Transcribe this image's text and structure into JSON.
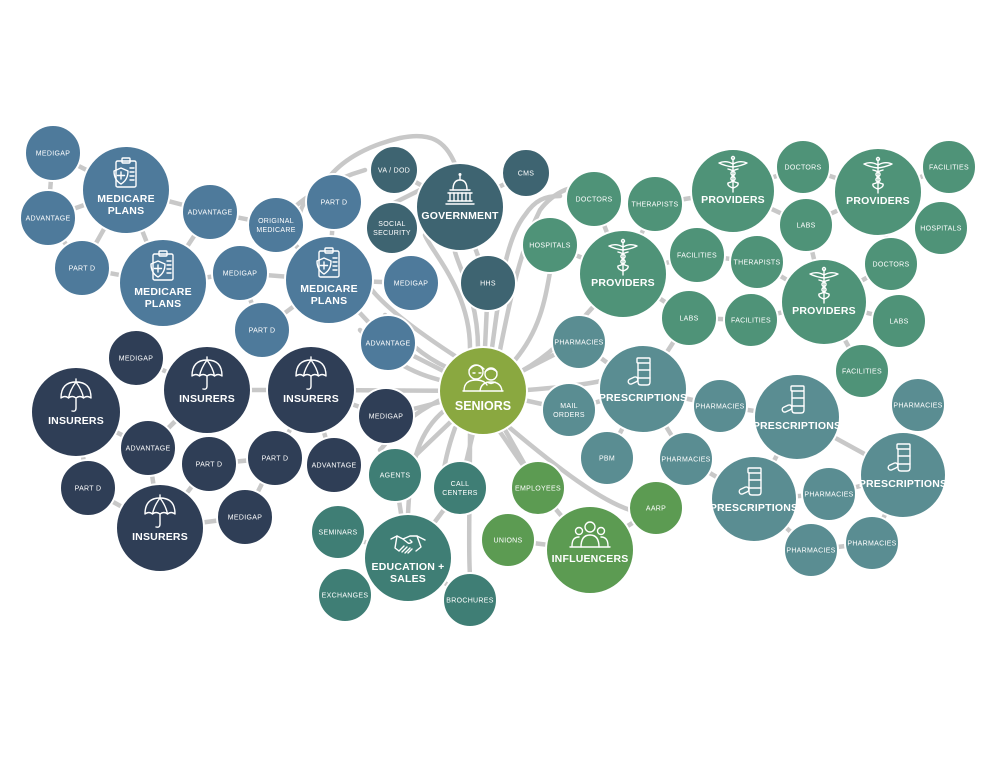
{
  "colors": {
    "medicare": "#4e7a9b",
    "government": "#3e6471",
    "insurers": "#2f3e56",
    "seniors": "#8aa840",
    "education": "#3f7e75",
    "influencers": "#5c9b52",
    "providers": "#4f9378",
    "prescriptions": "#5a8d92",
    "connector": "#c8c8c8"
  },
  "hub": {
    "label": "SENIORS",
    "icon": "seniors-icon"
  },
  "medicare_plans": {
    "plan_a": {
      "label": [
        "MEDICARE",
        "PLANS"
      ],
      "icon": "clipboard-shield-icon",
      "medigap": "MEDIGAP",
      "advantage": "ADVANTAGE",
      "part_d": "PART D"
    },
    "plan_b": {
      "label": [
        "MEDICARE",
        "PLANS"
      ],
      "icon": "clipboard-shield-icon",
      "advantage": "ADVANTAGE",
      "medigap": "MEDIGAP",
      "part_d": "PART D",
      "original_medicare": [
        "ORIGINAL",
        "MEDICARE"
      ]
    },
    "plan_c": {
      "label": [
        "MEDICARE",
        "PLANS"
      ],
      "icon": "clipboard-shield-icon",
      "part_d": "PART D",
      "medigap": "MEDIGAP",
      "advantage": "ADVANTAGE"
    }
  },
  "government": {
    "label": "GOVERNMENT",
    "icon": "capitol-icon",
    "va_dod": "VA / DOD",
    "cms": "CMS",
    "social_security": [
      "SOCIAL",
      "SECURITY"
    ],
    "hhs": "HHS"
  },
  "insurers": {
    "insurer_a": {
      "label": "INSURERS",
      "icon": "umbrella-icon",
      "advantage": "ADVANTAGE",
      "part_d": "PART D"
    },
    "insurer_b": {
      "label": "INSURERS",
      "icon": "umbrella-icon",
      "medigap": "MEDIGAP",
      "part_d": "PART D"
    },
    "insurer_c": {
      "label": "INSURERS",
      "icon": "umbrella-icon",
      "medigap": "MEDIGAP",
      "part_d": "PART D",
      "advantage": "ADVANTAGE"
    },
    "insurer_d": {
      "label": "INSURERS",
      "icon": "umbrella-icon",
      "medigap": "MEDIGAP"
    }
  },
  "education_sales": {
    "label": [
      "EDUCATION +",
      "SALES"
    ],
    "icon": "handshake-icon",
    "agents": "AGENTS",
    "call_centers": [
      "CALL",
      "CENTERS"
    ],
    "seminars": "SEMINARS",
    "exchanges": "EXCHANGES",
    "brochures": "BROCHURES"
  },
  "influencers": {
    "label": "INFLUENCERS",
    "icon": "group-icon",
    "employees": "EMPLOYEES",
    "unions": "UNIONS",
    "aarp": "AARP"
  },
  "providers": {
    "provider_a": {
      "label": "PROVIDERS",
      "icon": "caduceus-icon",
      "doctors": "DOCTORS",
      "hospitals": "HOSPITALS",
      "therapists": "THERAPISTS",
      "facilities": "FACILITIES",
      "labs": "LABS"
    },
    "provider_b": {
      "label": "PROVIDERS",
      "icon": "caduceus-icon",
      "doctors": "DOCTORS",
      "labs": "LABS"
    },
    "provider_c": {
      "label": "PROVIDERS",
      "icon": "caduceus-icon",
      "facilities": "FACILITIES",
      "hospitals": "HOSPITALS",
      "doctors": "DOCTORS"
    },
    "provider_d": {
      "label": "PROVIDERS",
      "icon": "caduceus-icon",
      "therapists": "THERAPISTS",
      "facilities": "FACILITIES",
      "labs": "LABS",
      "facilities_2": "FACILITIES"
    }
  },
  "prescriptions": {
    "rx_a": {
      "label": "PRESCRIPTIONS",
      "icon": "pill-bottle-icon",
      "pharmacies": "PHARMACIES",
      "mail_orders": [
        "MAIL",
        "ORDERS"
      ],
      "pbm": "PBM",
      "pharmacies_2": "PHARMACIES",
      "pharmacies_3": "PHARMACIES"
    },
    "rx_b": {
      "label": "PRESCRIPTIONS",
      "icon": "pill-bottle-icon"
    },
    "rx_c": {
      "label": "PRESCRIPTIONS",
      "icon": "pill-bottle-icon",
      "pharmacies": "PHARMACIES",
      "pharmacies_2": "PHARMACIES"
    },
    "rx_d": {
      "label": "PRESCRIPTIONS",
      "icon": "pill-bottle-icon",
      "pharmacies": "PHARMACIES",
      "pharmacies_2": "PHARMACIES",
      "pharmacies_3": "PHARMACIES"
    }
  }
}
